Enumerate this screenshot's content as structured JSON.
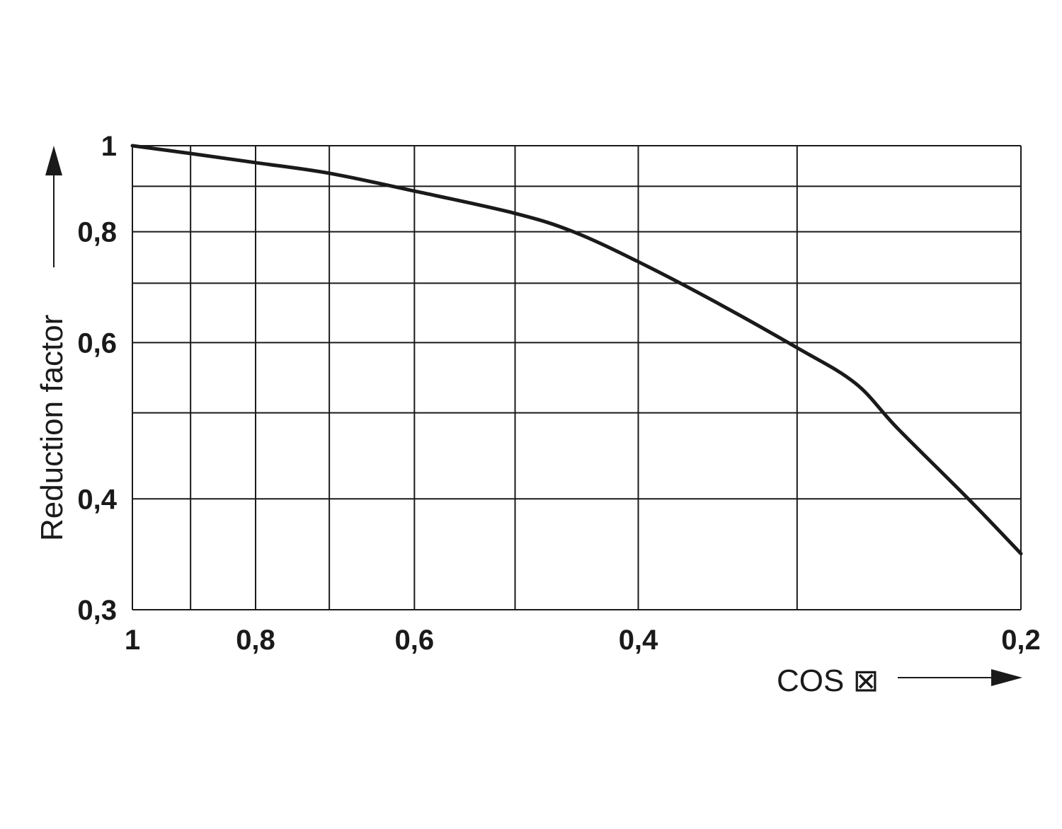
{
  "chart_data": {
    "type": "line",
    "title": "",
    "xlabel": "COS ⊠",
    "ylabel": "Reduction factor",
    "x_scale": "log",
    "y_scale": "log",
    "x_reversed": true,
    "xlim": [
      1,
      0.2
    ],
    "ylim": [
      0.3,
      1
    ],
    "grid": true,
    "x_gridlines": [
      1,
      0.9,
      0.8,
      0.7,
      0.6,
      0.5,
      0.4,
      0.3,
      0.2
    ],
    "y_gridlines": [
      1,
      0.9,
      0.8,
      0.7,
      0.6,
      0.5,
      0.4,
      0.3
    ],
    "x_ticks": [
      {
        "value": 1,
        "label": "1"
      },
      {
        "value": 0.8,
        "label": "0,8"
      },
      {
        "value": 0.6,
        "label": "0,6"
      },
      {
        "value": 0.4,
        "label": "0,4"
      },
      {
        "value": 0.2,
        "label": "0,2"
      }
    ],
    "y_ticks": [
      {
        "value": 1,
        "label": "1"
      },
      {
        "value": 0.8,
        "label": "0,8"
      },
      {
        "value": 0.6,
        "label": "0,6"
      },
      {
        "value": 0.4,
        "label": "0,4"
      },
      {
        "value": 0.3,
        "label": "0,3"
      }
    ],
    "series": [
      {
        "x": [
          1,
          0.9,
          0.8,
          0.7,
          0.6,
          0.5,
          0.45,
          0.4,
          0.35,
          0.3,
          0.27,
          0.25,
          0.22,
          0.2
        ],
        "y": [
          1,
          0.98,
          0.957,
          0.931,
          0.889,
          0.839,
          0.8,
          0.74,
          0.67,
          0.592,
          0.54,
          0.48,
          0.4,
          0.347
        ],
        "color": "#1a1a1a"
      }
    ]
  }
}
